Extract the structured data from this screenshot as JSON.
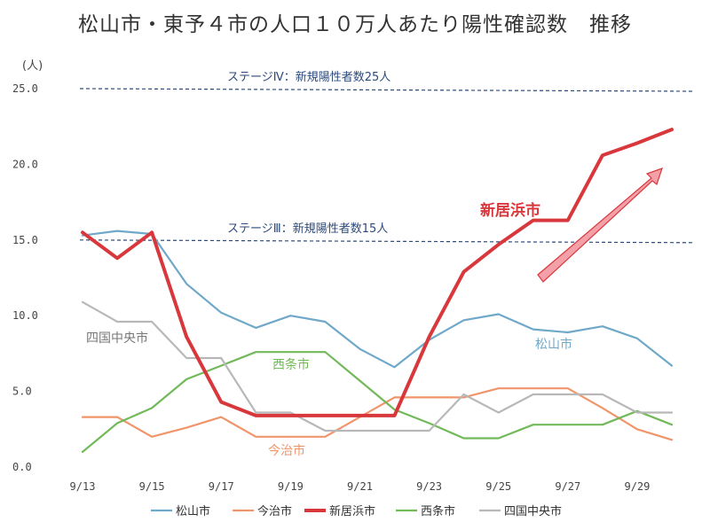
{
  "chart_data": {
    "type": "line",
    "title": "松山市・東予４市の人口１０万人あたり陽性確認数　推移",
    "ylabel": "(人)",
    "ylim": [
      0,
      25
    ],
    "yticks": [
      "0.0",
      "5.0",
      "10.0",
      "15.0",
      "20.0",
      "25.0"
    ],
    "x": [
      "9/13",
      "9/14",
      "9/15",
      "9/16",
      "9/17",
      "9/18",
      "9/19",
      "9/20",
      "9/21",
      "9/22",
      "9/23",
      "9/24",
      "9/25",
      "9/26",
      "9/27",
      "9/28",
      "9/29",
      "9/30"
    ],
    "xtick_labels": [
      "9/13",
      "9/15",
      "9/17",
      "9/19",
      "9/21",
      "9/23",
      "9/25",
      "9/27",
      "9/29"
    ],
    "series": [
      {
        "name": "松山市",
        "color": "#6fa8c8",
        "values": [
          15.3,
          15.6,
          15.4,
          12.1,
          10.2,
          9.2,
          10.0,
          9.6,
          7.8,
          6.6,
          8.4,
          9.7,
          10.1,
          9.1,
          8.9,
          9.3,
          8.5,
          6.7
        ]
      },
      {
        "name": "今治市",
        "color": "#f0956a",
        "values": [
          3.3,
          3.3,
          2.0,
          2.6,
          3.3,
          2.0,
          2.0,
          2.0,
          3.3,
          4.6,
          4.6,
          4.6,
          5.2,
          5.2,
          5.2,
          3.9,
          2.5,
          1.8
        ]
      },
      {
        "name": "新居浜市",
        "color": "#d8373c",
        "values": [
          15.5,
          13.8,
          15.5,
          8.6,
          4.3,
          3.4,
          3.4,
          3.4,
          3.4,
          3.4,
          8.6,
          12.9,
          14.7,
          16.3,
          16.3,
          20.6,
          21.4,
          22.3
        ]
      },
      {
        "name": "西条市",
        "color": "#72b95a",
        "values": [
          1.0,
          2.9,
          3.9,
          5.8,
          6.7,
          7.6,
          7.6,
          7.6,
          5.7,
          3.8,
          2.9,
          1.9,
          1.9,
          2.8,
          2.8,
          2.8,
          3.7,
          2.8
        ]
      },
      {
        "name": "四国中央市",
        "color": "#b8b8b8",
        "values": [
          10.9,
          9.6,
          9.6,
          7.2,
          7.2,
          3.6,
          3.6,
          2.4,
          2.4,
          2.4,
          2.4,
          4.8,
          3.6,
          4.8,
          4.8,
          4.8,
          3.6,
          3.6
        ]
      }
    ],
    "reference_lines": [
      {
        "value": 25,
        "label": "ステージⅣ：新規陽性者数25人"
      },
      {
        "value": 15,
        "label": "ステージⅢ：新規陽性者数15人"
      }
    ],
    "annotations": [
      {
        "text": "新居浜市",
        "series": "新居浜市"
      },
      {
        "text": "松山市",
        "series": "松山市"
      },
      {
        "text": "四国中央市",
        "series": "四国中央市"
      },
      {
        "text": "西条市",
        "series": "西条市"
      },
      {
        "text": "今治市",
        "series": "今治市"
      }
    ],
    "grid": false,
    "legend": "bottom"
  }
}
